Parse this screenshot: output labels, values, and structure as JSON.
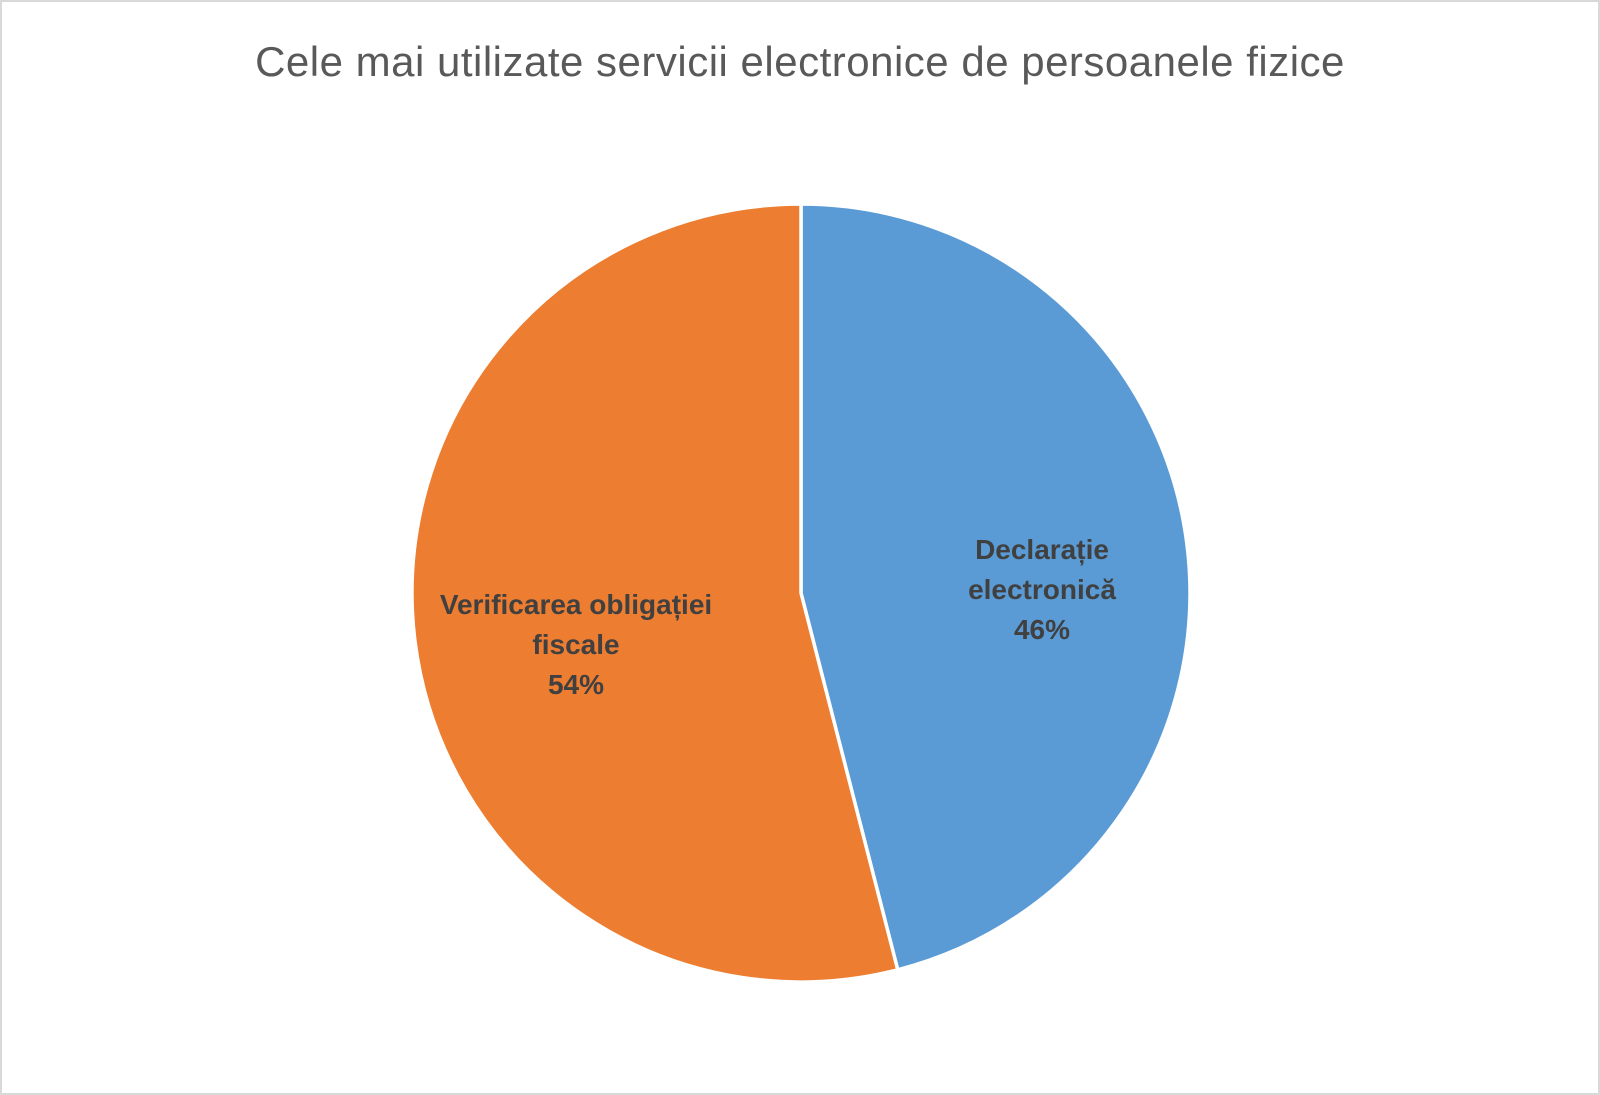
{
  "page": {
    "background_color": "#FFFFFF",
    "border_color": "#D9D9D9"
  },
  "chart_data": {
    "type": "pie",
    "title": "Cele mai utilizate servicii electronice de persoanele fizice",
    "title_color": "#595959",
    "label_color": "#404040",
    "separator_color": "#FFFFFF",
    "legend": "none",
    "start_angle_deg": 0,
    "direction": "clockwise",
    "slices": [
      {
        "label": "Declarație electronică",
        "value": 46,
        "pct_label": "46%",
        "color": "#5B9BD5",
        "position": "right"
      },
      {
        "label": "Verificarea obligației fiscale",
        "value": 54,
        "pct_label": "54%",
        "color": "#ED7D31",
        "position": "left"
      }
    ]
  }
}
